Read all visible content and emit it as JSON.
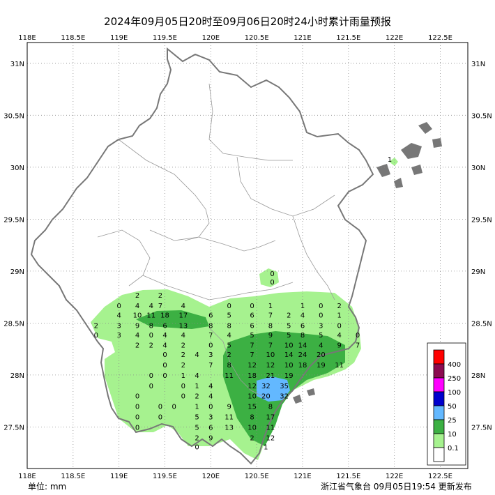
{
  "title": "2024年09月05日20时至09月06日20时24小时累计雨量预报",
  "unit_label": "单位: mm",
  "issuer_label": "浙江省气象台 09月05日19:54 更新发布",
  "x_ticks": [
    "118E",
    "118.5E",
    "119E",
    "119.5E",
    "120E",
    "120.5E",
    "121E",
    "121.5E",
    "122E",
    "122.5E"
  ],
  "y_ticks": [
    "31N",
    "30.5N",
    "30N",
    "29.5N",
    "29N",
    "28.5N",
    "28N",
    "27.5N"
  ],
  "legend": [
    {
      "label": "400",
      "color": "#ff0000"
    },
    {
      "label": "250",
      "color": "#8b0a50"
    },
    {
      "label": "100",
      "color": "#ff00ff"
    },
    {
      "label": "50",
      "color": "#0000cd"
    },
    {
      "label": "25",
      "color": "#63b8ff"
    },
    {
      "label": "10",
      "color": "#3cb043"
    },
    {
      "label": "0.1",
      "color": "#a6f28f"
    },
    {
      "label": "",
      "color": "#ffffff"
    }
  ],
  "station_values": [
    {
      "v": "0",
      "lon": 120.67,
      "lat": 28.98
    },
    {
      "v": "0",
      "lon": 120.67,
      "lat": 28.9
    },
    {
      "v": "2",
      "lon": 119.2,
      "lat": 28.77
    },
    {
      "v": "2",
      "lon": 119.45,
      "lat": 28.77
    },
    {
      "v": "0",
      "lon": 119.0,
      "lat": 28.67
    },
    {
      "v": "4",
      "lon": 119.2,
      "lat": 28.67
    },
    {
      "v": "4",
      "lon": 119.35,
      "lat": 28.67
    },
    {
      "v": "7",
      "lon": 119.45,
      "lat": 28.67
    },
    {
      "v": "4",
      "lon": 119.7,
      "lat": 28.67
    },
    {
      "v": "0",
      "lon": 120.2,
      "lat": 28.67
    },
    {
      "v": "0",
      "lon": 120.45,
      "lat": 28.67
    },
    {
      "v": "1",
      "lon": 120.65,
      "lat": 28.67
    },
    {
      "v": "1",
      "lon": 121.0,
      "lat": 28.67
    },
    {
      "v": "0",
      "lon": 121.2,
      "lat": 28.67
    },
    {
      "v": "2",
      "lon": 121.4,
      "lat": 28.67
    },
    {
      "v": "4",
      "lon": 119.0,
      "lat": 28.58
    },
    {
      "v": "10",
      "lon": 119.2,
      "lat": 28.58
    },
    {
      "v": "11",
      "lon": 119.35,
      "lat": 28.58
    },
    {
      "v": "18",
      "lon": 119.5,
      "lat": 28.58
    },
    {
      "v": "17",
      "lon": 119.7,
      "lat": 28.58
    },
    {
      "v": "6",
      "lon": 120.0,
      "lat": 28.58
    },
    {
      "v": "5",
      "lon": 120.2,
      "lat": 28.58
    },
    {
      "v": "6",
      "lon": 120.45,
      "lat": 28.58
    },
    {
      "v": "7",
      "lon": 120.65,
      "lat": 28.58
    },
    {
      "v": "2",
      "lon": 120.85,
      "lat": 28.58
    },
    {
      "v": "4",
      "lon": 121.0,
      "lat": 28.58
    },
    {
      "v": "0",
      "lon": 121.2,
      "lat": 28.58
    },
    {
      "v": "1",
      "lon": 121.4,
      "lat": 28.58
    },
    {
      "v": "2",
      "lon": 118.75,
      "lat": 28.48
    },
    {
      "v": "3",
      "lon": 119.0,
      "lat": 28.48
    },
    {
      "v": "9",
      "lon": 119.2,
      "lat": 28.48
    },
    {
      "v": "8",
      "lon": 119.35,
      "lat": 28.48
    },
    {
      "v": "6",
      "lon": 119.5,
      "lat": 28.48
    },
    {
      "v": "13",
      "lon": 119.7,
      "lat": 28.48
    },
    {
      "v": "8",
      "lon": 120.0,
      "lat": 28.48
    },
    {
      "v": "8",
      "lon": 120.2,
      "lat": 28.48
    },
    {
      "v": "6",
      "lon": 120.45,
      "lat": 28.48
    },
    {
      "v": "8",
      "lon": 120.65,
      "lat": 28.48
    },
    {
      "v": "5",
      "lon": 120.85,
      "lat": 28.48
    },
    {
      "v": "6",
      "lon": 121.0,
      "lat": 28.48
    },
    {
      "v": "3",
      "lon": 121.2,
      "lat": 28.48
    },
    {
      "v": "0",
      "lon": 121.4,
      "lat": 28.48
    },
    {
      "v": "0",
      "lon": 118.75,
      "lat": 28.39
    },
    {
      "v": "3",
      "lon": 119.0,
      "lat": 28.39
    },
    {
      "v": "4",
      "lon": 119.2,
      "lat": 28.39
    },
    {
      "v": "0",
      "lon": 119.35,
      "lat": 28.39
    },
    {
      "v": "4",
      "lon": 119.5,
      "lat": 28.39
    },
    {
      "v": "4",
      "lon": 119.7,
      "lat": 28.39
    },
    {
      "v": "7",
      "lon": 120.0,
      "lat": 28.39
    },
    {
      "v": "4",
      "lon": 120.2,
      "lat": 28.39
    },
    {
      "v": "5",
      "lon": 120.45,
      "lat": 28.39
    },
    {
      "v": "9",
      "lon": 120.65,
      "lat": 28.39
    },
    {
      "v": "5",
      "lon": 120.85,
      "lat": 28.39
    },
    {
      "v": "8",
      "lon": 121.0,
      "lat": 28.39
    },
    {
      "v": "5",
      "lon": 121.2,
      "lat": 28.39
    },
    {
      "v": "4",
      "lon": 121.4,
      "lat": 28.39
    },
    {
      "v": "0",
      "lon": 121.6,
      "lat": 28.39
    },
    {
      "v": "2",
      "lon": 119.2,
      "lat": 28.29
    },
    {
      "v": "2",
      "lon": 119.35,
      "lat": 28.29
    },
    {
      "v": "4",
      "lon": 119.5,
      "lat": 28.29
    },
    {
      "v": "2",
      "lon": 119.7,
      "lat": 28.29
    },
    {
      "v": "0",
      "lon": 120.0,
      "lat": 28.29
    },
    {
      "v": "5",
      "lon": 120.2,
      "lat": 28.29
    },
    {
      "v": "7",
      "lon": 120.45,
      "lat": 28.29
    },
    {
      "v": "7",
      "lon": 120.65,
      "lat": 28.29
    },
    {
      "v": "10",
      "lon": 120.85,
      "lat": 28.29
    },
    {
      "v": "14",
      "lon": 121.0,
      "lat": 28.29
    },
    {
      "v": "4",
      "lon": 121.2,
      "lat": 28.29
    },
    {
      "v": "9",
      "lon": 121.4,
      "lat": 28.29
    },
    {
      "v": "7",
      "lon": 121.6,
      "lat": 28.29
    },
    {
      "v": "0",
      "lon": 119.5,
      "lat": 28.2
    },
    {
      "v": "2",
      "lon": 119.7,
      "lat": 28.2
    },
    {
      "v": "4",
      "lon": 119.85,
      "lat": 28.2
    },
    {
      "v": "3",
      "lon": 120.0,
      "lat": 28.2
    },
    {
      "v": "2",
      "lon": 120.2,
      "lat": 28.2
    },
    {
      "v": "7",
      "lon": 120.45,
      "lat": 28.2
    },
    {
      "v": "10",
      "lon": 120.65,
      "lat": 28.2
    },
    {
      "v": "14",
      "lon": 120.85,
      "lat": 28.2
    },
    {
      "v": "24",
      "lon": 121.0,
      "lat": 28.2
    },
    {
      "v": "20",
      "lon": 121.2,
      "lat": 28.2
    },
    {
      "v": "0",
      "lon": 119.5,
      "lat": 28.1
    },
    {
      "v": "2",
      "lon": 119.7,
      "lat": 28.1
    },
    {
      "v": "7",
      "lon": 120.0,
      "lat": 28.1
    },
    {
      "v": "8",
      "lon": 120.2,
      "lat": 28.1
    },
    {
      "v": "12",
      "lon": 120.45,
      "lat": 28.1
    },
    {
      "v": "12",
      "lon": 120.65,
      "lat": 28.1
    },
    {
      "v": "10",
      "lon": 120.85,
      "lat": 28.1
    },
    {
      "v": "18",
      "lon": 121.0,
      "lat": 28.1
    },
    {
      "v": "19",
      "lon": 121.2,
      "lat": 28.1
    },
    {
      "v": "11",
      "lon": 121.4,
      "lat": 28.1
    },
    {
      "v": "0",
      "lon": 119.35,
      "lat": 28.0
    },
    {
      "v": "0",
      "lon": 119.5,
      "lat": 28.0
    },
    {
      "v": "1",
      "lon": 119.7,
      "lat": 28.0
    },
    {
      "v": "4",
      "lon": 119.85,
      "lat": 28.0
    },
    {
      "v": "11",
      "lon": 120.2,
      "lat": 28.0
    },
    {
      "v": "18",
      "lon": 120.45,
      "lat": 28.0
    },
    {
      "v": "21",
      "lon": 120.65,
      "lat": 28.0
    },
    {
      "v": "19",
      "lon": 120.85,
      "lat": 28.0
    },
    {
      "v": "0",
      "lon": 119.35,
      "lat": 27.9
    },
    {
      "v": "0",
      "lon": 119.7,
      "lat": 27.9
    },
    {
      "v": "1",
      "lon": 119.85,
      "lat": 27.9
    },
    {
      "v": "4",
      "lon": 120.0,
      "lat": 27.9
    },
    {
      "v": "12",
      "lon": 120.45,
      "lat": 27.9
    },
    {
      "v": "32",
      "lon": 120.6,
      "lat": 27.9
    },
    {
      "v": "35",
      "lon": 120.8,
      "lat": 27.9
    },
    {
      "v": "0",
      "lon": 119.2,
      "lat": 27.8
    },
    {
      "v": "0",
      "lon": 119.7,
      "lat": 27.8
    },
    {
      "v": "2",
      "lon": 119.85,
      "lat": 27.8
    },
    {
      "v": "4",
      "lon": 120.0,
      "lat": 27.8
    },
    {
      "v": "10",
      "lon": 120.45,
      "lat": 27.8
    },
    {
      "v": "20",
      "lon": 120.6,
      "lat": 27.8
    },
    {
      "v": "32",
      "lon": 120.8,
      "lat": 27.8
    },
    {
      "v": "0",
      "lon": 119.2,
      "lat": 27.7
    },
    {
      "v": "0",
      "lon": 119.45,
      "lat": 27.7
    },
    {
      "v": "0",
      "lon": 119.6,
      "lat": 27.7
    },
    {
      "v": "1",
      "lon": 119.85,
      "lat": 27.7
    },
    {
      "v": "0",
      "lon": 120.0,
      "lat": 27.7
    },
    {
      "v": "9",
      "lon": 120.2,
      "lat": 27.7
    },
    {
      "v": "15",
      "lon": 120.45,
      "lat": 27.7
    },
    {
      "v": "8",
      "lon": 120.65,
      "lat": 27.7
    },
    {
      "v": "0",
      "lon": 119.2,
      "lat": 27.6
    },
    {
      "v": "0",
      "lon": 119.45,
      "lat": 27.6
    },
    {
      "v": "5",
      "lon": 119.85,
      "lat": 27.6
    },
    {
      "v": "3",
      "lon": 120.0,
      "lat": 27.6
    },
    {
      "v": "11",
      "lon": 120.2,
      "lat": 27.6
    },
    {
      "v": "8",
      "lon": 120.45,
      "lat": 27.6
    },
    {
      "v": "17",
      "lon": 120.65,
      "lat": 27.6
    },
    {
      "v": "0",
      "lon": 119.2,
      "lat": 27.5
    },
    {
      "v": "5",
      "lon": 119.85,
      "lat": 27.5
    },
    {
      "v": "6",
      "lon": 120.0,
      "lat": 27.5
    },
    {
      "v": "13",
      "lon": 120.2,
      "lat": 27.5
    },
    {
      "v": "10",
      "lon": 120.45,
      "lat": 27.5
    },
    {
      "v": "11",
      "lon": 120.65,
      "lat": 27.5
    },
    {
      "v": "2",
      "lon": 119.85,
      "lat": 27.4
    },
    {
      "v": "9",
      "lon": 120.0,
      "lat": 27.4
    },
    {
      "v": "2",
      "lon": 120.45,
      "lat": 27.4
    },
    {
      "v": "12",
      "lon": 120.65,
      "lat": 27.4
    },
    {
      "v": "0",
      "lon": 119.85,
      "lat": 27.31
    },
    {
      "v": "1",
      "lon": 120.6,
      "lat": 27.31
    },
    {
      "v": "1",
      "lon": 121.95,
      "lat": 30.08
    }
  ]
}
